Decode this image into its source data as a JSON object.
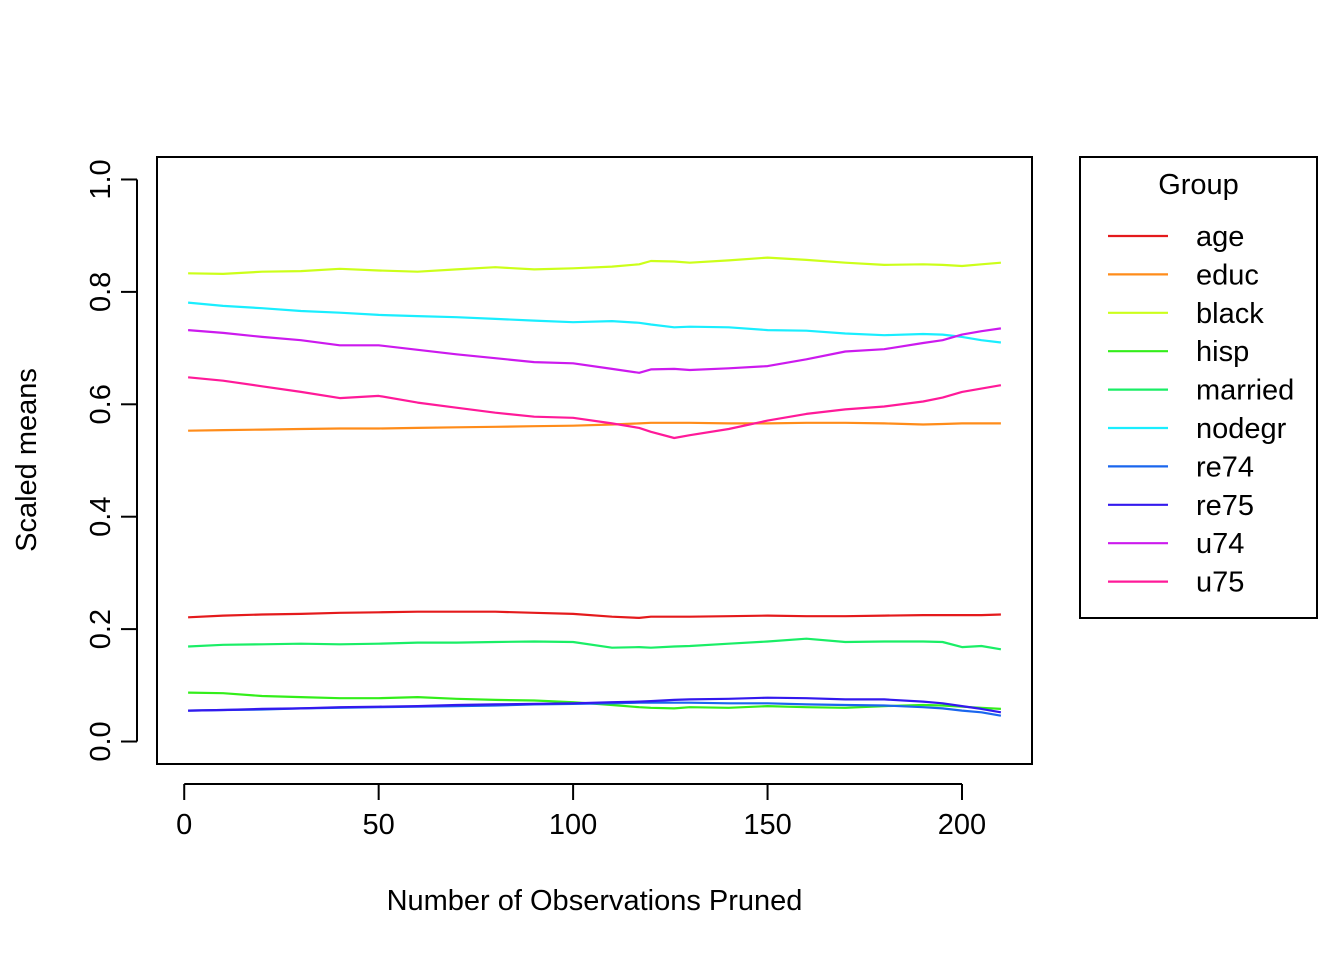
{
  "chart_data": {
    "type": "line",
    "title": "",
    "xlabel": "Number of Observations Pruned",
    "ylabel": "Scaled means",
    "xlim": [
      -7,
      218
    ],
    "ylim": [
      -0.04,
      1.04
    ],
    "x_ticks": [
      0,
      50,
      100,
      150,
      200
    ],
    "x_tick_labels": [
      "0",
      "50",
      "100",
      "150",
      "200"
    ],
    "y_ticks": [
      0.0,
      0.2,
      0.4,
      0.6,
      0.8,
      1.0
    ],
    "y_tick_labels": [
      "0.0",
      "0.2",
      "0.4",
      "0.6",
      "0.8",
      "1.0"
    ],
    "grid": false,
    "legend": {
      "title": "Group",
      "position": "right"
    },
    "x": [
      1,
      10,
      20,
      30,
      40,
      50,
      60,
      70,
      80,
      90,
      100,
      110,
      117,
      120,
      126,
      130,
      140,
      150,
      160,
      170,
      180,
      190,
      195,
      200,
      205,
      210
    ],
    "series": [
      {
        "name": "age",
        "color": "#E41A1C",
        "values": [
          0.221,
          0.224,
          0.226,
          0.227,
          0.229,
          0.23,
          0.231,
          0.231,
          0.231,
          0.229,
          0.227,
          0.222,
          0.22,
          0.222,
          0.222,
          0.222,
          0.223,
          0.224,
          0.223,
          0.223,
          0.224,
          0.225,
          0.225,
          0.225,
          0.225,
          0.226
        ]
      },
      {
        "name": "educ",
        "color": "#FF8C1A",
        "values": [
          0.553,
          0.554,
          0.555,
          0.556,
          0.557,
          0.557,
          0.558,
          0.559,
          0.56,
          0.561,
          0.562,
          0.564,
          0.566,
          0.567,
          0.567,
          0.567,
          0.566,
          0.566,
          0.567,
          0.567,
          0.566,
          0.564,
          0.565,
          0.566,
          0.566,
          0.566
        ]
      },
      {
        "name": "black",
        "color": "#CCFF1A",
        "values": [
          0.833,
          0.832,
          0.836,
          0.837,
          0.841,
          0.838,
          0.836,
          0.84,
          0.844,
          0.84,
          0.842,
          0.845,
          0.849,
          0.855,
          0.854,
          0.852,
          0.856,
          0.861,
          0.857,
          0.852,
          0.848,
          0.849,
          0.848,
          0.846,
          0.849,
          0.852
        ]
      },
      {
        "name": "hisp",
        "color": "#33EE1A",
        "values": [
          0.087,
          0.086,
          0.081,
          0.079,
          0.077,
          0.077,
          0.079,
          0.076,
          0.074,
          0.073,
          0.07,
          0.065,
          0.061,
          0.06,
          0.059,
          0.061,
          0.06,
          0.063,
          0.061,
          0.06,
          0.063,
          0.065,
          0.064,
          0.062,
          0.06,
          0.058
        ]
      },
      {
        "name": "married",
        "color": "#1AEE66",
        "values": [
          0.169,
          0.172,
          0.173,
          0.174,
          0.173,
          0.174,
          0.176,
          0.176,
          0.177,
          0.178,
          0.177,
          0.167,
          0.168,
          0.167,
          0.169,
          0.17,
          0.174,
          0.178,
          0.183,
          0.177,
          0.178,
          0.178,
          0.177,
          0.168,
          0.17,
          0.164
        ]
      },
      {
        "name": "nodegr",
        "color": "#1AEEFF",
        "values": [
          0.781,
          0.775,
          0.771,
          0.766,
          0.763,
          0.759,
          0.757,
          0.755,
          0.752,
          0.749,
          0.746,
          0.748,
          0.745,
          0.742,
          0.737,
          0.738,
          0.737,
          0.732,
          0.731,
          0.726,
          0.723,
          0.725,
          0.724,
          0.72,
          0.714,
          0.71
        ]
      },
      {
        "name": "re74",
        "color": "#1A66EE",
        "values": [
          0.055,
          0.056,
          0.057,
          0.059,
          0.06,
          0.061,
          0.062,
          0.063,
          0.064,
          0.066,
          0.067,
          0.068,
          0.069,
          0.069,
          0.069,
          0.069,
          0.068,
          0.068,
          0.066,
          0.065,
          0.064,
          0.061,
          0.059,
          0.055,
          0.052,
          0.046
        ]
      },
      {
        "name": "re75",
        "color": "#3319EE",
        "values": [
          0.055,
          0.056,
          0.058,
          0.059,
          0.061,
          0.062,
          0.063,
          0.065,
          0.066,
          0.067,
          0.068,
          0.07,
          0.071,
          0.072,
          0.074,
          0.075,
          0.076,
          0.078,
          0.077,
          0.075,
          0.075,
          0.071,
          0.068,
          0.063,
          0.058,
          0.052
        ]
      },
      {
        "name": "u74",
        "color": "#CC1AEE",
        "values": [
          0.732,
          0.727,
          0.72,
          0.714,
          0.705,
          0.705,
          0.697,
          0.689,
          0.682,
          0.675,
          0.673,
          0.663,
          0.656,
          0.662,
          0.663,
          0.661,
          0.664,
          0.668,
          0.68,
          0.694,
          0.698,
          0.709,
          0.714,
          0.724,
          0.73,
          0.735
        ]
      },
      {
        "name": "u75",
        "color": "#FF1A99",
        "values": [
          0.648,
          0.642,
          0.632,
          0.622,
          0.611,
          0.615,
          0.603,
          0.594,
          0.585,
          0.578,
          0.576,
          0.566,
          0.558,
          0.551,
          0.54,
          0.545,
          0.556,
          0.571,
          0.583,
          0.591,
          0.596,
          0.605,
          0.612,
          0.622,
          0.628,
          0.634
        ]
      }
    ]
  }
}
